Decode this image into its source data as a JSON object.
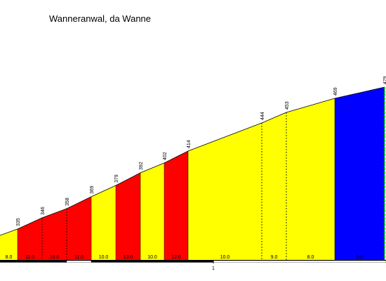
{
  "chart_data": {
    "type": "area",
    "title": "Wanneranwal, da Wanne",
    "distance_ticks": [
      "1"
    ],
    "segments": [
      {
        "gradient_label": "8.0",
        "color": "#ffff00"
      },
      {
        "gradient_label": "11.0",
        "color": "#ff0000"
      },
      {
        "gradient_label": "10.0",
        "color": "#ff0000"
      },
      {
        "gradient_label": "11.0",
        "color": "#ff0000"
      },
      {
        "gradient_label": "10.0",
        "color": "#ffff00"
      },
      {
        "gradient_label": "13.0",
        "color": "#ff0000"
      },
      {
        "gradient_label": "10.0",
        "color": "#ffff00"
      },
      {
        "gradient_label": "12.0",
        "color": "#ff0000"
      },
      {
        "gradient_label": "10.0",
        "color": "#ffff00"
      },
      {
        "gradient_label": "9.0",
        "color": "#ffff00"
      },
      {
        "gradient_label": "8.0",
        "color": "#ffff00"
      },
      {
        "gradient_label": "5.0",
        "color": "#0000ff"
      }
    ],
    "elevation_labels": [
      "335",
      "346",
      "358",
      "369",
      "379",
      "392",
      "402",
      "414",
      "444",
      "453",
      "469",
      "479"
    ],
    "ylabel": "",
    "xlabel": ""
  }
}
